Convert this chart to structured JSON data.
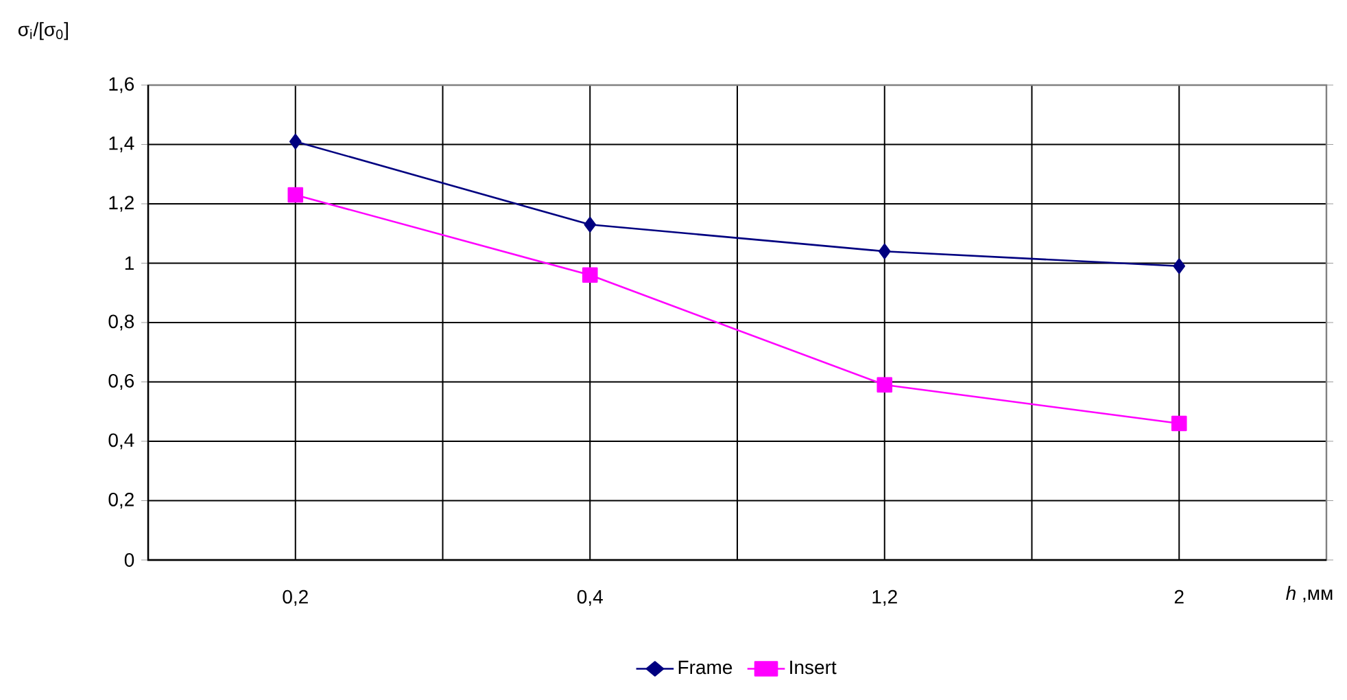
{
  "chart_data": {
    "type": "line",
    "ylabel": "σ$_{i}$/[σ$_{0}$]",
    "xlabel": "*h* ,мм",
    "categories": [
      "0,2",
      "0,4",
      "1,2",
      "2"
    ],
    "series": [
      {
        "name": "Frame",
        "color": "#000080",
        "marker": "diamond",
        "values": [
          1.41,
          1.13,
          1.04,
          0.99
        ]
      },
      {
        "name": "Insert",
        "color": "#ff00ff",
        "marker": "square",
        "values": [
          1.23,
          0.96,
          0.59,
          0.46
        ]
      }
    ],
    "ylim": [
      0,
      1.6
    ],
    "yticks": [
      {
        "value": 0,
        "label": "0"
      },
      {
        "value": 0.2,
        "label": "0,2"
      },
      {
        "value": 0.4,
        "label": "0,4"
      },
      {
        "value": 0.6,
        "label": "0,6"
      },
      {
        "value": 0.8,
        "label": "0,8"
      },
      {
        "value": 1,
        "label": "1"
      },
      {
        "value": 1.2,
        "label": "1,2"
      },
      {
        "value": 1.4,
        "label": "1,4"
      },
      {
        "value": 1.6,
        "label": "1,6"
      }
    ],
    "grid": true,
    "legend": "bottom",
    "line_style": "solid"
  }
}
